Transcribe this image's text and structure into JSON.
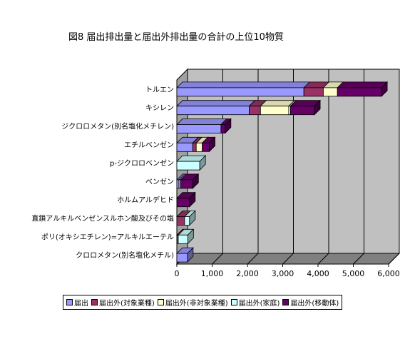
{
  "chart_data": {
    "type": "bar",
    "orientation": "horizontal",
    "stacked": true,
    "three_d": true,
    "title": "図8  届出排出量と届出外排出量の合計の上位10物質",
    "categories": [
      "トルエン",
      "キシレン",
      "ジクロロメタン(別名塩化メチレン)",
      "エチルベンゼン",
      "p-ジクロロベンゼン",
      "ベンゼン",
      "ホルムアルデヒド",
      "直鎖アルキルベンゼンスルホン酸及びその塩",
      "ポリ(オキシエチレン)=アルキルエーテル",
      "クロロメタン(別名塩化メチル)"
    ],
    "series": [
      {
        "name": "届出",
        "color": "#9999ff",
        "values": [
          3600,
          2050,
          1250,
          450,
          0,
          60,
          0,
          0,
          0,
          300
        ]
      },
      {
        "name": "届出外(対象業種)",
        "color": "#993366",
        "values": [
          550,
          320,
          0,
          100,
          0,
          0,
          0,
          220,
          40,
          0
        ]
      },
      {
        "name": "届出外(非対象業種)",
        "color": "#ffffcc",
        "values": [
          400,
          800,
          0,
          170,
          0,
          0,
          0,
          0,
          0,
          0
        ]
      },
      {
        "name": "届出外(家庭)",
        "color": "#ccffff",
        "values": [
          0,
          50,
          0,
          0,
          650,
          40,
          0,
          140,
          270,
          0
        ]
      },
      {
        "name": "届出外(移動体)",
        "color": "#660066",
        "values": [
          1250,
          680,
          120,
          200,
          0,
          350,
          360,
          0,
          0,
          0
        ]
      }
    ],
    "xlim": [
      0,
      6000
    ],
    "xticks": [
      0,
      1000,
      2000,
      3000,
      4000,
      5000,
      6000
    ],
    "xtick_labels": [
      "0",
      "1,000",
      "2,000",
      "3,000",
      "4,000",
      "5,000",
      "6,000"
    ],
    "grid": true,
    "legend_position": "bottom",
    "wall_color": "#c0c0c0"
  }
}
